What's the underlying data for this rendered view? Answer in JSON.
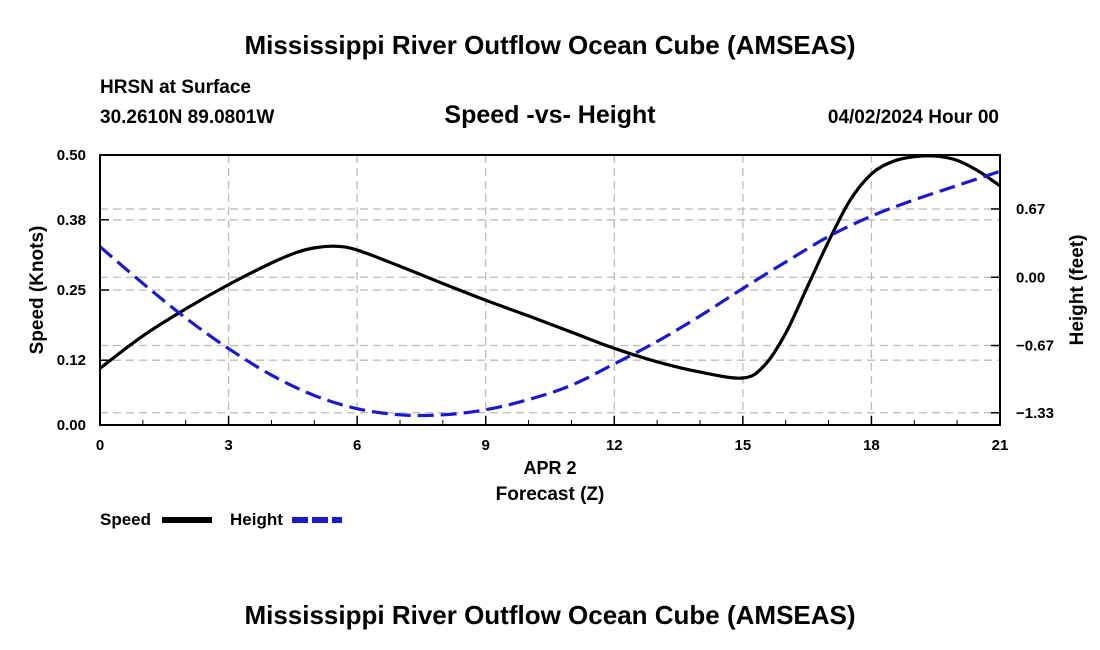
{
  "header": {
    "title": "Mississippi River Outflow Ocean Cube (AMSEAS)",
    "station": "HRSN at Surface",
    "coords": "30.2610N  89.0801W",
    "subtitle": "Speed -vs- Height",
    "datetime": "04/02/2024 Hour 00"
  },
  "footer": {
    "title": "Mississippi River Outflow Ocean Cube (AMSEAS)"
  },
  "legend": {
    "speed_label": "Speed",
    "height_label": "Height"
  },
  "colors": {
    "speed": "#000000",
    "height": "#1a1acc",
    "grid": "#bbbbbb"
  },
  "chart_data": {
    "type": "line",
    "title": "Speed -vs- Height",
    "xlabel": "APR 2",
    "xlabel2": "Forecast (Z)",
    "ylabel": "Speed (Knots)",
    "y2label": "Height (feet)",
    "x_ticks": [
      0,
      3,
      6,
      9,
      12,
      15,
      18,
      21
    ],
    "y_ticks": [
      0.0,
      0.12,
      0.25,
      0.38,
      0.5
    ],
    "y_tick_labels": [
      "0.00",
      "0.12",
      "0.25",
      "0.38",
      "0.50"
    ],
    "y2_ticks": [
      -1.33,
      -0.67,
      0.0,
      0.67
    ],
    "y2_tick_labels": [
      "−1.33",
      "−0.67",
      "0.00",
      "0.67"
    ],
    "xlim": [
      0,
      21
    ],
    "ylim": [
      0,
      0.5
    ],
    "y2lim": [
      -1.45,
      1.2
    ],
    "series": [
      {
        "name": "Speed",
        "axis": "left",
        "style": "solid",
        "x": [
          0,
          1,
          2,
          3,
          4,
          4.6,
          5,
          5.5,
          6,
          7,
          8,
          9,
          10,
          11,
          12,
          13,
          14,
          15,
          15.5,
          16,
          16.5,
          17,
          17.5,
          18,
          18.5,
          19,
          19.5,
          20,
          20.5,
          21
        ],
        "values": [
          0.105,
          0.165,
          0.215,
          0.26,
          0.3,
          0.32,
          0.328,
          0.331,
          0.324,
          0.294,
          0.262,
          0.231,
          0.202,
          0.172,
          0.142,
          0.117,
          0.098,
          0.087,
          0.11,
          0.17,
          0.255,
          0.34,
          0.416,
          0.465,
          0.488,
          0.497,
          0.498,
          0.49,
          0.47,
          0.443
        ]
      },
      {
        "name": "Height",
        "axis": "right",
        "style": "dashed",
        "x": [
          0,
          1,
          2,
          3,
          4,
          5,
          6,
          7,
          8,
          9,
          10,
          11,
          12,
          13,
          14,
          15,
          16,
          17,
          18,
          19,
          20,
          21
        ],
        "values": [
          0.3,
          -0.06,
          -0.4,
          -0.7,
          -0.96,
          -1.16,
          -1.29,
          -1.35,
          -1.35,
          -1.3,
          -1.2,
          -1.06,
          -0.85,
          -0.63,
          -0.38,
          -0.11,
          0.15,
          0.4,
          0.6,
          0.76,
          0.9,
          1.04
        ]
      }
    ]
  }
}
